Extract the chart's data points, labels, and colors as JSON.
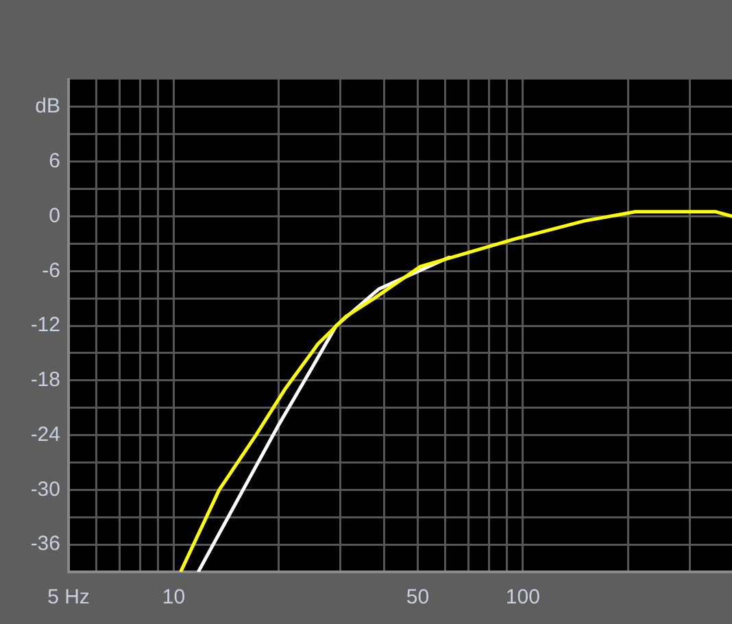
{
  "chart_data": {
    "type": "line",
    "log": "x",
    "grid": true,
    "legend": false,
    "marker": "none",
    "line_style": "solid",
    "xlim": [
      5,
      397
    ],
    "ylim": [
      -39,
      15
    ],
    "xticks": [
      {
        "value": 5,
        "label": "5 Hz"
      },
      {
        "value": 6,
        "label": null
      },
      {
        "value": 7,
        "label": null
      },
      {
        "value": 8,
        "label": null
      },
      {
        "value": 9,
        "label": null
      },
      10,
      {
        "value": 20,
        "label": null
      },
      {
        "value": 30,
        "label": null
      },
      {
        "value": 40,
        "label": null
      },
      50,
      {
        "value": 60,
        "label": null
      },
      {
        "value": 70,
        "label": null
      },
      {
        "value": 80,
        "label": null
      },
      {
        "value": 90,
        "label": null
      },
      100,
      {
        "value": 200,
        "label": null
      },
      {
        "value": 300,
        "label": null
      }
    ],
    "yticks": [
      {
        "value": 12,
        "label": "dB"
      },
      {
        "value": 9,
        "label": null
      },
      6,
      {
        "value": 3,
        "label": null
      },
      0,
      {
        "value": -3,
        "label": null
      },
      -6,
      {
        "value": -9,
        "label": null
      },
      -12,
      {
        "value": -15,
        "label": null
      },
      -18,
      {
        "value": -21,
        "label": null
      },
      -24,
      {
        "value": -27,
        "label": null
      },
      -30,
      {
        "value": -33,
        "label": null
      },
      -36
    ],
    "series": [
      {
        "color": "#ffffff",
        "x": [
          11.8,
          15.8,
          19.9,
          25,
          29.2,
          38.6,
          61.5
        ],
        "values": [
          -38.9,
          -30,
          -23,
          -16.5,
          -12,
          -8,
          -4.5
        ]
      },
      {
        "color": "#ffff00",
        "x": [
          10.5,
          13.5,
          17.2,
          20.8,
          25.9,
          31.1,
          37.5,
          50.9,
          94.6,
          150,
          210,
          357,
          397
        ],
        "values": [
          -38.9,
          -30,
          -24,
          -19,
          -14,
          -11,
          -9,
          -5.5,
          -2.5,
          -0.5,
          0.5,
          0.5,
          0
        ]
      }
    ]
  }
}
